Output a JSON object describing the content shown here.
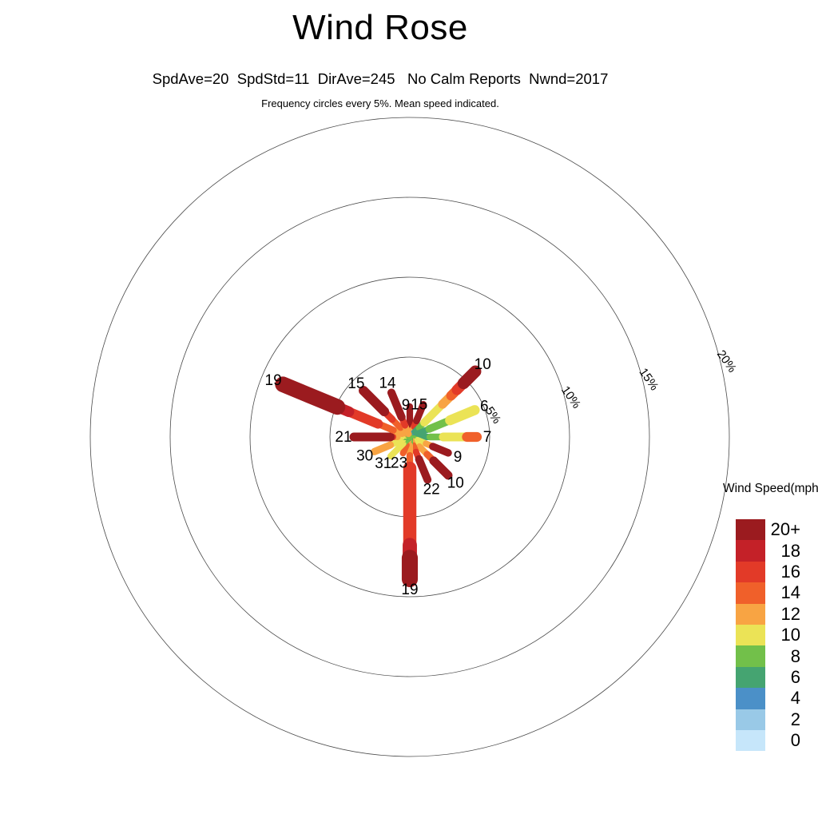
{
  "title": "Wind Rose",
  "stats_line": "SpdAve=20  SpdStd=11  DirAve=245   No Calm Reports  Nwnd=2017",
  "note_line": "Frequency circles every 5%. Mean speed indicated.",
  "legend": {
    "title": "Wind Speed(mph)",
    "entries": [
      {
        "label": "20+",
        "color": "#9b1b1f"
      },
      {
        "label": "18",
        "color": "#c42128"
      },
      {
        "label": "16",
        "color": "#e23a28"
      },
      {
        "label": "14",
        "color": "#f0602a"
      },
      {
        "label": "12",
        "color": "#f8a443"
      },
      {
        "label": "10",
        "color": "#ebe356"
      },
      {
        "label": "8",
        "color": "#72c04a"
      },
      {
        "label": "6",
        "color": "#45a471"
      },
      {
        "label": "4",
        "color": "#4b90c8"
      },
      {
        "label": "2",
        "color": "#99c9e7"
      },
      {
        "label": "0",
        "color": "#c6e6fa"
      }
    ]
  },
  "chart_data": {
    "type": "windrose",
    "title": "Wind Rose",
    "stats": {
      "SpdAve": 20,
      "SpdStd": 11,
      "DirAve": 245,
      "calm": "No Calm Reports",
      "Nwnd": 2017
    },
    "frequency_circle_interval_pct": 5,
    "frequency_circles": [
      {
        "pct": 5,
        "label": "5%"
      },
      {
        "pct": 10,
        "label": "10%"
      },
      {
        "pct": 15,
        "label": "15%"
      },
      {
        "pct": 20,
        "label": "20%"
      }
    ],
    "speed_bin_colors": {
      "0": "#c6e6fa",
      "2": "#99c9e7",
      "4": "#4b90c8",
      "6": "#45a471",
      "8": "#72c04a",
      "10": "#ebe356",
      "12": "#f8a443",
      "14": "#f0602a",
      "16": "#e23a28",
      "18": "#c42128",
      "20+": "#9b1b1f"
    },
    "directions": [
      {
        "dir": "N",
        "angle_deg": 0,
        "frequency_pct": 1.9,
        "mean_speed": 9,
        "segments": [
          [
            "8",
            0.1
          ],
          [
            "12",
            0.22
          ],
          [
            "16",
            0.42
          ],
          [
            "20+",
            1
          ]
        ]
      },
      {
        "dir": "NNE",
        "angle_deg": 22.5,
        "frequency_pct": 2.2,
        "mean_speed": 15,
        "segments": [
          [
            "8",
            0.1
          ],
          [
            "10",
            0.2
          ],
          [
            "12",
            0.32
          ],
          [
            "16",
            0.5
          ],
          [
            "20+",
            1
          ]
        ]
      },
      {
        "dir": "NE",
        "angle_deg": 45,
        "frequency_pct": 5.8,
        "mean_speed": 10,
        "segments": [
          [
            "2",
            0.03
          ],
          [
            "4",
            0.08
          ],
          [
            "6",
            0.14
          ],
          [
            "8",
            0.22
          ],
          [
            "10",
            0.5
          ],
          [
            "12",
            0.63
          ],
          [
            "14",
            0.72
          ],
          [
            "16",
            0.82
          ],
          [
            "20+",
            1
          ]
        ]
      },
      {
        "dir": "ENE",
        "angle_deg": 67.5,
        "frequency_pct": 4.4,
        "mean_speed": 6,
        "segments": [
          [
            "4",
            0.07
          ],
          [
            "6",
            0.3
          ],
          [
            "8",
            0.62
          ],
          [
            "10",
            1
          ]
        ]
      },
      {
        "dir": "E",
        "angle_deg": 90,
        "frequency_pct": 4.2,
        "mean_speed": 7,
        "segments": [
          [
            "4",
            0.08
          ],
          [
            "6",
            0.3
          ],
          [
            "8",
            0.5
          ],
          [
            "10",
            0.85
          ],
          [
            "14",
            1
          ]
        ]
      },
      {
        "dir": "ESE",
        "angle_deg": 112.5,
        "frequency_pct": 2.6,
        "mean_speed": 9,
        "segments": [
          [
            "6",
            0.1
          ],
          [
            "8",
            0.2
          ],
          [
            "10",
            0.42
          ],
          [
            "12",
            0.6
          ],
          [
            "20+",
            1
          ]
        ]
      },
      {
        "dir": "SE",
        "angle_deg": 135,
        "frequency_pct": 3.4,
        "mean_speed": 10,
        "segments": [
          [
            "8",
            0.12
          ],
          [
            "10",
            0.25
          ],
          [
            "12",
            0.45
          ],
          [
            "14",
            0.62
          ],
          [
            "20+",
            1
          ]
        ]
      },
      {
        "dir": "SSE",
        "angle_deg": 157.5,
        "frequency_pct": 2.9,
        "mean_speed": 22,
        "segments": [
          [
            "8",
            0.08
          ],
          [
            "12",
            0.2
          ],
          [
            "14",
            0.35
          ],
          [
            "16",
            0.52
          ],
          [
            "20+",
            1
          ]
        ]
      },
      {
        "dir": "S",
        "angle_deg": 180,
        "frequency_pct": 8.9,
        "mean_speed": 19,
        "segments": [
          [
            "6",
            0.03
          ],
          [
            "8",
            0.06
          ],
          [
            "12",
            0.13
          ],
          [
            "14",
            0.22
          ],
          [
            "16",
            0.76
          ],
          [
            "18",
            0.85
          ],
          [
            "20+",
            1
          ]
        ]
      },
      {
        "dir": "SSW",
        "angle_deg": 202.5,
        "frequency_pct": 1.1,
        "mean_speed": 23,
        "segments": [
          [
            "8",
            0.2
          ],
          [
            "12",
            0.5
          ],
          [
            "14",
            1
          ]
        ]
      },
      {
        "dir": "SW",
        "angle_deg": 225,
        "frequency_pct": 1.7,
        "mean_speed": 31,
        "segments": [
          [
            "6",
            0.15
          ],
          [
            "8",
            0.35
          ],
          [
            "10",
            1
          ]
        ]
      },
      {
        "dir": "WSW",
        "angle_deg": 247.5,
        "frequency_pct": 2.4,
        "mean_speed": 30,
        "segments": [
          [
            "8",
            0.2
          ],
          [
            "10",
            0.55
          ],
          [
            "12",
            1
          ]
        ]
      },
      {
        "dir": "W",
        "angle_deg": 270,
        "frequency_pct": 3.5,
        "mean_speed": 21,
        "segments": [
          [
            "6",
            0.07
          ],
          [
            "8",
            0.14
          ],
          [
            "10",
            0.22
          ],
          [
            "12",
            0.3
          ],
          [
            "16",
            0.35
          ],
          [
            "20+",
            1
          ]
        ]
      },
      {
        "dir": "WNW",
        "angle_deg": 292.5,
        "frequency_pct": 8.6,
        "mean_speed": 19,
        "segments": [
          [
            "8",
            0.03
          ],
          [
            "10",
            0.06
          ],
          [
            "12",
            0.13
          ],
          [
            "14",
            0.25
          ],
          [
            "16",
            0.48
          ],
          [
            "18",
            0.57
          ],
          [
            "20+",
            1
          ]
        ]
      },
      {
        "dir": "NW",
        "angle_deg": 315,
        "frequency_pct": 4.1,
        "mean_speed": 15,
        "segments": [
          [
            "8",
            0.06
          ],
          [
            "12",
            0.2
          ],
          [
            "14",
            0.38
          ],
          [
            "16",
            0.55
          ],
          [
            "20+",
            1
          ]
        ]
      },
      {
        "dir": "NNW",
        "angle_deg": 337.5,
        "frequency_pct": 3.0,
        "mean_speed": 14,
        "segments": [
          [
            "8",
            0.07
          ],
          [
            "12",
            0.26
          ],
          [
            "16",
            0.45
          ],
          [
            "20+",
            1
          ]
        ]
      }
    ]
  }
}
